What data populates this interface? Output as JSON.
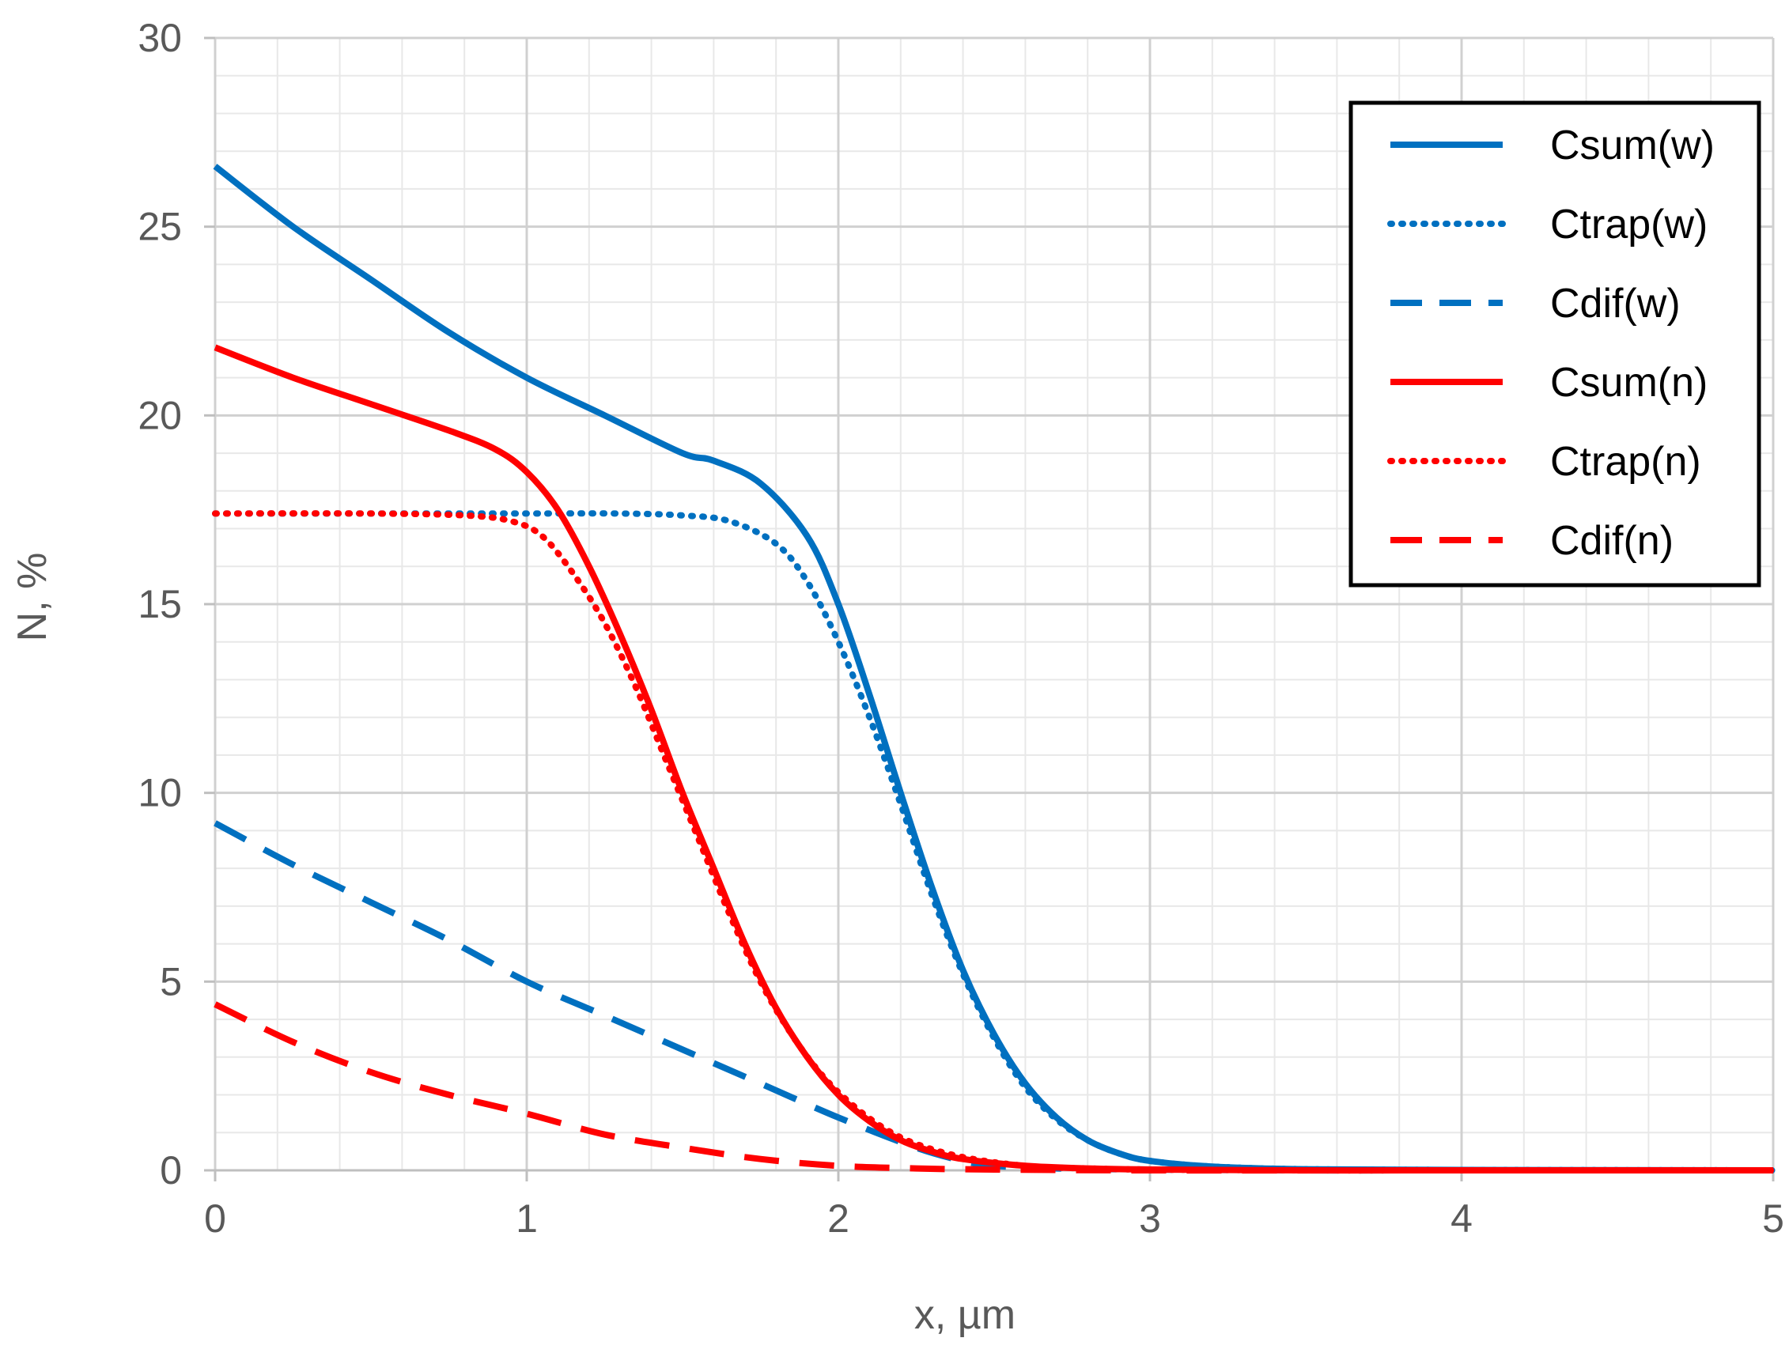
{
  "chart_data": {
    "type": "line",
    "title": "",
    "xlabel": "x, µm",
    "ylabel": "N, %",
    "xlim": [
      0,
      5
    ],
    "ylim": [
      0,
      30
    ],
    "xticks": [
      "0",
      "1",
      "2",
      "3",
      "4",
      "5"
    ],
    "yticks": [
      "0",
      "5",
      "10",
      "15",
      "20",
      "25",
      "30"
    ],
    "grid": true,
    "minor_grid": true,
    "legend_position": "top-right",
    "colors": {
      "w": "#0070C0",
      "n": "#FF0000"
    },
    "series": [
      {
        "name": "Csum(w)",
        "color": "#0070C0",
        "style": "solid",
        "x": [
          0,
          0.25,
          0.5,
          0.75,
          1.0,
          1.25,
          1.5,
          1.6,
          1.75,
          1.9,
          2.0,
          2.1,
          2.2,
          2.3,
          2.4,
          2.5,
          2.6,
          2.7,
          2.8,
          2.9,
          3.0,
          3.2,
          3.5,
          4.0,
          5.0
        ],
        "y": [
          26.6,
          25.0,
          23.6,
          22.2,
          21.0,
          20.0,
          19.0,
          18.8,
          18.2,
          16.8,
          15.0,
          12.6,
          10.0,
          7.5,
          5.3,
          3.6,
          2.3,
          1.4,
          0.8,
          0.45,
          0.25,
          0.1,
          0.03,
          0.01,
          0
        ]
      },
      {
        "name": "Ctrap(w)",
        "color": "#0070C0",
        "style": "dotted",
        "x": [
          0,
          0.5,
          1.0,
          1.3,
          1.5,
          1.65,
          1.8,
          1.9,
          2.0,
          2.1,
          2.2,
          2.3,
          2.4,
          2.5,
          2.6,
          2.7,
          2.8,
          2.9,
          3.0,
          3.2,
          3.5,
          4.0,
          5.0
        ],
        "y": [
          17.4,
          17.4,
          17.4,
          17.4,
          17.35,
          17.2,
          16.6,
          15.6,
          14.0,
          12.0,
          9.7,
          7.3,
          5.2,
          3.5,
          2.2,
          1.35,
          0.8,
          0.45,
          0.25,
          0.1,
          0.03,
          0.01,
          0
        ]
      },
      {
        "name": "Cdif(w)",
        "color": "#0070C0",
        "style": "dashed",
        "x": [
          0,
          0.25,
          0.5,
          0.75,
          1.0,
          1.25,
          1.5,
          1.75,
          2.0,
          2.25,
          2.4,
          2.5,
          2.7,
          3.0,
          3.5,
          4.0,
          5.0
        ],
        "y": [
          9.2,
          8.1,
          7.1,
          6.1,
          5.0,
          4.1,
          3.2,
          2.3,
          1.4,
          0.6,
          0.25,
          0.12,
          0.05,
          0.02,
          0.0,
          0.0,
          0
        ]
      },
      {
        "name": "Csum(n)",
        "color": "#FF0000",
        "style": "solid",
        "x": [
          0,
          0.25,
          0.5,
          0.75,
          0.9,
          1.0,
          1.1,
          1.2,
          1.3,
          1.4,
          1.5,
          1.6,
          1.7,
          1.8,
          1.9,
          2.0,
          2.1,
          2.2,
          2.3,
          2.4,
          2.6,
          2.8,
          3.0,
          3.5,
          4.0,
          5.0
        ],
        "y": [
          21.8,
          21.0,
          20.3,
          19.6,
          19.1,
          18.5,
          17.5,
          16.0,
          14.2,
          12.2,
          10.0,
          8.0,
          6.0,
          4.3,
          3.0,
          2.0,
          1.3,
          0.8,
          0.5,
          0.3,
          0.12,
          0.05,
          0.02,
          0.0,
          0.0,
          0
        ]
      },
      {
        "name": "Ctrap(n)",
        "color": "#FF0000",
        "style": "dotted",
        "x": [
          0,
          0.5,
          0.8,
          0.95,
          1.05,
          1.15,
          1.25,
          1.35,
          1.45,
          1.55,
          1.65,
          1.75,
          1.85,
          1.95,
          2.05,
          2.15,
          2.25,
          2.4,
          2.6,
          2.8,
          3.0,
          3.5,
          4.0,
          5.0
        ],
        "y": [
          17.4,
          17.4,
          17.35,
          17.2,
          16.8,
          15.8,
          14.5,
          12.8,
          10.8,
          8.8,
          6.8,
          5.0,
          3.6,
          2.5,
          1.7,
          1.1,
          0.7,
          0.35,
          0.12,
          0.05,
          0.02,
          0.0,
          0.0,
          0
        ]
      },
      {
        "name": "Cdif(n)",
        "color": "#FF0000",
        "style": "dashed",
        "x": [
          0,
          0.25,
          0.5,
          0.75,
          1.0,
          1.25,
          1.5,
          1.75,
          2.0,
          2.25,
          2.5,
          3.0,
          4.0,
          5.0
        ],
        "y": [
          4.4,
          3.4,
          2.6,
          2.0,
          1.5,
          0.95,
          0.6,
          0.3,
          0.12,
          0.05,
          0.02,
          0.0,
          0.0,
          0
        ]
      }
    ]
  }
}
